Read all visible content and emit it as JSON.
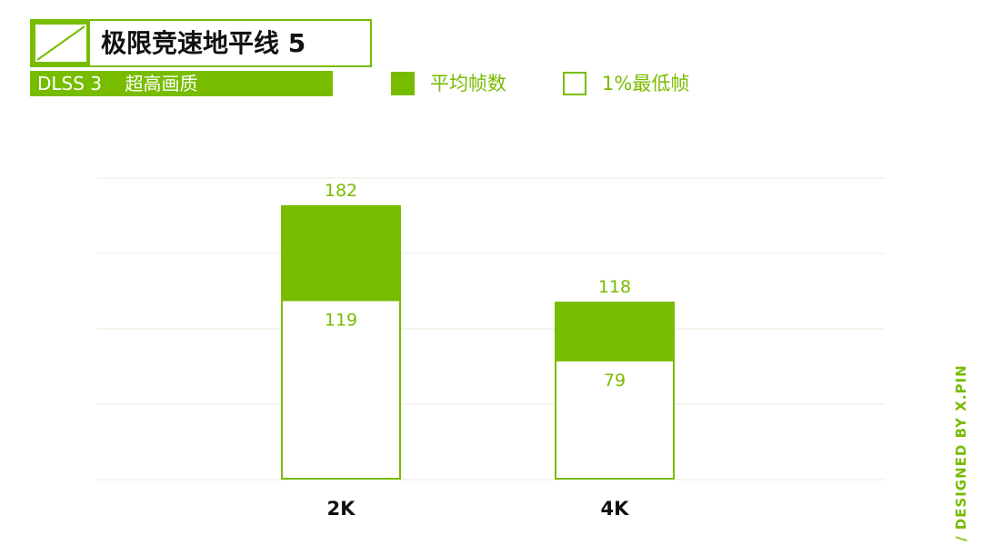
{
  "header": {
    "title": "极限竞速地平线 5",
    "subtitle": "DLSS 3    超高画质"
  },
  "legend": [
    {
      "label": "平均帧数",
      "fill": "solid"
    },
    {
      "label": "1%最低帧",
      "fill": "outline"
    }
  ],
  "credit": "/ DESIGNED BY X.PIN",
  "colors": {
    "accent": "#78bc00",
    "grid": "#e8ecd8",
    "text_dark": "#111111",
    "background": "#ffffff"
  },
  "chart_data": {
    "type": "bar",
    "categories": [
      "2K",
      "4K"
    ],
    "series": [
      {
        "name": "平均帧数",
        "values": [
          182,
          118
        ]
      },
      {
        "name": "1%最低帧",
        "values": [
          119,
          79
        ]
      }
    ],
    "ylim": [
      0,
      200
    ],
    "grid": true,
    "legend_position": "top"
  }
}
